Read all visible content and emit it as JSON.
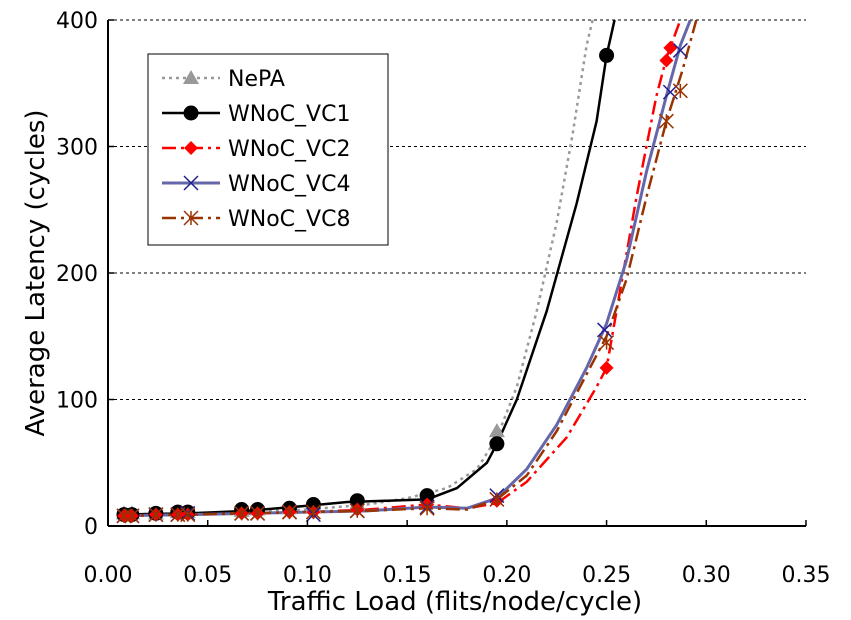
{
  "chart_data": {
    "type": "line",
    "xlabel": "Traffic Load (flits/node/cycle)",
    "ylabel": "Average Latency (cycles)",
    "xlim": [
      0,
      0.35
    ],
    "ylim": [
      0,
      400
    ],
    "x_ticks": [
      "0.00",
      "0.05",
      "0.10",
      "0.15",
      "0.20",
      "0.25",
      "0.30",
      "0.35"
    ],
    "y_ticks": [
      "0",
      "100",
      "200",
      "300",
      "400"
    ],
    "x_tick_values": [
      0,
      0.05,
      0.1,
      0.15,
      0.2,
      0.25,
      0.3,
      0.35
    ],
    "y_tick_values": [
      0,
      100,
      200,
      300,
      400
    ],
    "grid": "horizontal dashed",
    "legend_position": "top-left",
    "series": [
      {
        "name": "NePA",
        "color": "#999999",
        "dash": "dotted",
        "marker": "triangle",
        "curve": [
          [
            0.007,
            9
          ],
          [
            0.02,
            9.5
          ],
          [
            0.04,
            10
          ],
          [
            0.07,
            11
          ],
          [
            0.1,
            13
          ],
          [
            0.13,
            17
          ],
          [
            0.15,
            22
          ],
          [
            0.17,
            30
          ],
          [
            0.185,
            45
          ],
          [
            0.195,
            70
          ],
          [
            0.205,
            110
          ],
          [
            0.215,
            170
          ],
          [
            0.225,
            240
          ],
          [
            0.233,
            310
          ],
          [
            0.24,
            380
          ],
          [
            0.243,
            400
          ]
        ],
        "markers": [
          [
            0.008,
            10
          ],
          [
            0.012,
            10
          ],
          [
            0.024,
            10
          ],
          [
            0.035,
            11
          ],
          [
            0.04,
            11
          ],
          [
            0.067,
            12
          ],
          [
            0.075,
            13
          ],
          [
            0.091,
            14
          ],
          [
            0.103,
            15
          ],
          [
            0.125,
            18
          ],
          [
            0.16,
            23
          ],
          [
            0.195,
            75
          ]
        ]
      },
      {
        "name": "WNoC_VC1",
        "color": "#000000",
        "dash": "solid",
        "marker": "circle",
        "curve": [
          [
            0.007,
            9
          ],
          [
            0.02,
            9.5
          ],
          [
            0.04,
            10
          ],
          [
            0.07,
            12
          ],
          [
            0.1,
            16
          ],
          [
            0.12,
            19
          ],
          [
            0.14,
            20
          ],
          [
            0.16,
            21
          ],
          [
            0.175,
            30
          ],
          [
            0.19,
            50
          ],
          [
            0.195,
            65
          ],
          [
            0.205,
            100
          ],
          [
            0.22,
            170
          ],
          [
            0.235,
            255
          ],
          [
            0.245,
            320
          ],
          [
            0.25,
            372
          ],
          [
            0.254,
            400
          ]
        ],
        "markers": [
          [
            0.008,
            9
          ],
          [
            0.012,
            9
          ],
          [
            0.024,
            10
          ],
          [
            0.035,
            11
          ],
          [
            0.04,
            11
          ],
          [
            0.067,
            13
          ],
          [
            0.075,
            13
          ],
          [
            0.091,
            14
          ],
          [
            0.103,
            17
          ],
          [
            0.125,
            20
          ],
          [
            0.16,
            24
          ],
          [
            0.195,
            65
          ],
          [
            0.25,
            372
          ]
        ]
      },
      {
        "name": "WNoC_VC2",
        "color": "#ff0000",
        "dash": "dash-dot",
        "marker": "diamond",
        "curve": [
          [
            0.007,
            8
          ],
          [
            0.02,
            8.5
          ],
          [
            0.04,
            9
          ],
          [
            0.07,
            10
          ],
          [
            0.1,
            11
          ],
          [
            0.13,
            13
          ],
          [
            0.16,
            17
          ],
          [
            0.18,
            14
          ],
          [
            0.195,
            18
          ],
          [
            0.21,
            35
          ],
          [
            0.23,
            70
          ],
          [
            0.245,
            110
          ],
          [
            0.25,
            125
          ],
          [
            0.255,
            170
          ],
          [
            0.265,
            260
          ],
          [
            0.275,
            340
          ],
          [
            0.28,
            370
          ],
          [
            0.287,
            400
          ]
        ],
        "markers": [
          [
            0.008,
            8
          ],
          [
            0.012,
            8
          ],
          [
            0.024,
            9
          ],
          [
            0.035,
            9
          ],
          [
            0.04,
            9
          ],
          [
            0.067,
            10
          ],
          [
            0.075,
            10
          ],
          [
            0.091,
            11
          ],
          [
            0.103,
            11
          ],
          [
            0.125,
            13
          ],
          [
            0.16,
            17
          ],
          [
            0.195,
            20
          ],
          [
            0.25,
            125
          ],
          [
            0.28,
            368
          ],
          [
            0.282,
            378
          ]
        ]
      },
      {
        "name": "WNoC_VC4",
        "color": "#6666aa",
        "dash": "solid",
        "marker": "x",
        "curve": [
          [
            0.007,
            8
          ],
          [
            0.02,
            8.5
          ],
          [
            0.04,
            9
          ],
          [
            0.07,
            10
          ],
          [
            0.1,
            11
          ],
          [
            0.13,
            12
          ],
          [
            0.16,
            15
          ],
          [
            0.18,
            14
          ],
          [
            0.195,
            22
          ],
          [
            0.21,
            45
          ],
          [
            0.225,
            80
          ],
          [
            0.24,
            125
          ],
          [
            0.25,
            160
          ],
          [
            0.26,
            210
          ],
          [
            0.27,
            280
          ],
          [
            0.28,
            340
          ],
          [
            0.287,
            380
          ],
          [
            0.292,
            400
          ]
        ],
        "markers": [
          [
            0.008,
            8
          ],
          [
            0.012,
            8
          ],
          [
            0.024,
            9
          ],
          [
            0.035,
            9
          ],
          [
            0.04,
            10
          ],
          [
            0.067,
            10
          ],
          [
            0.075,
            10
          ],
          [
            0.091,
            11
          ],
          [
            0.103,
            9
          ],
          [
            0.125,
            12
          ],
          [
            0.16,
            15
          ],
          [
            0.195,
            24
          ],
          [
            0.249,
            155
          ],
          [
            0.282,
            343
          ],
          [
            0.287,
            376
          ]
        ]
      },
      {
        "name": "WNoC_VC8",
        "color": "#993300",
        "dash": "dash-dot",
        "marker": "star",
        "curve": [
          [
            0.007,
            8
          ],
          [
            0.02,
            8.5
          ],
          [
            0.04,
            9
          ],
          [
            0.07,
            10
          ],
          [
            0.1,
            11
          ],
          [
            0.13,
            12
          ],
          [
            0.16,
            14
          ],
          [
            0.18,
            13
          ],
          [
            0.195,
            21
          ],
          [
            0.21,
            40
          ],
          [
            0.225,
            75
          ],
          [
            0.24,
            120
          ],
          [
            0.25,
            150
          ],
          [
            0.26,
            195
          ],
          [
            0.27,
            260
          ],
          [
            0.28,
            320
          ],
          [
            0.288,
            360
          ],
          [
            0.295,
            400
          ]
        ],
        "markers": [
          [
            0.008,
            8
          ],
          [
            0.012,
            8
          ],
          [
            0.024,
            9
          ],
          [
            0.035,
            9
          ],
          [
            0.04,
            9
          ],
          [
            0.067,
            10
          ],
          [
            0.075,
            10
          ],
          [
            0.091,
            11
          ],
          [
            0.103,
            11
          ],
          [
            0.125,
            12
          ],
          [
            0.16,
            14
          ],
          [
            0.195,
            21
          ],
          [
            0.25,
            145
          ],
          [
            0.28,
            320
          ],
          [
            0.287,
            344
          ]
        ]
      }
    ]
  }
}
